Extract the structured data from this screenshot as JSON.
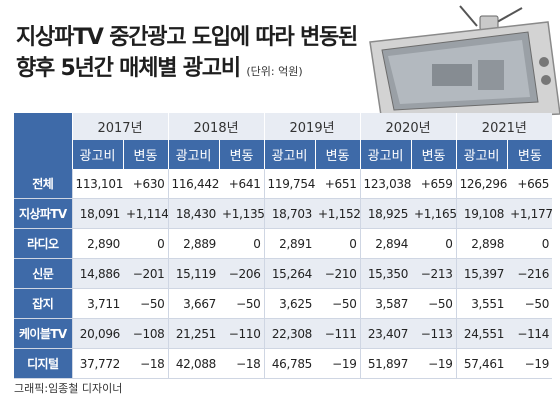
{
  "title_line1": "지상파TV 중간광고 도입에 따라 변동된",
  "title_line2": "향후 5년간 매체별 광고비",
  "unit": "(단위: 억원)",
  "years": [
    "2017년",
    "2018년",
    "2019년",
    "2020년",
    "2021년"
  ],
  "sub_headers": {
    "ad": "광고비",
    "change": "변동"
  },
  "rows": [
    {
      "label": "전체",
      "cells": [
        "113,101",
        "+630",
        "116,442",
        "+641",
        "119,754",
        "+651",
        "123,038",
        "+659",
        "126,296",
        "+665"
      ]
    },
    {
      "label": "지상파TV",
      "cells": [
        "18,091",
        "+1,114",
        "18,430",
        "+1,135",
        "18,703",
        "+1,152",
        "18,925",
        "+1,165",
        "19,108",
        "+1,177"
      ]
    },
    {
      "label": "라디오",
      "cells": [
        "2,890",
        "0",
        "2,889",
        "0",
        "2,891",
        "0",
        "2,894",
        "0",
        "2,898",
        "0"
      ]
    },
    {
      "label": "신문",
      "cells": [
        "14,886",
        "−201",
        "15,119",
        "−206",
        "15,264",
        "−210",
        "15,350",
        "−213",
        "15,397",
        "−216"
      ]
    },
    {
      "label": "잡지",
      "cells": [
        "3,711",
        "−50",
        "3,667",
        "−50",
        "3,625",
        "−50",
        "3,587",
        "−50",
        "3,551",
        "−50"
      ]
    },
    {
      "label": "케이블TV",
      "cells": [
        "20,096",
        "−108",
        "21,251",
        "−110",
        "22,308",
        "−111",
        "23,407",
        "−113",
        "24,551",
        "−114"
      ]
    },
    {
      "label": "디지털",
      "cells": [
        "37,772",
        "−18",
        "42,088",
        "−18",
        "46,785",
        "−19",
        "51,897",
        "−19",
        "57,461",
        "−19"
      ]
    }
  ],
  "credit": "그래픽:임종철 디자이너",
  "colors": {
    "header_blue": "#3e6aa8",
    "light_band": "#e8ecf3"
  },
  "decoration": "tv-illustration"
}
